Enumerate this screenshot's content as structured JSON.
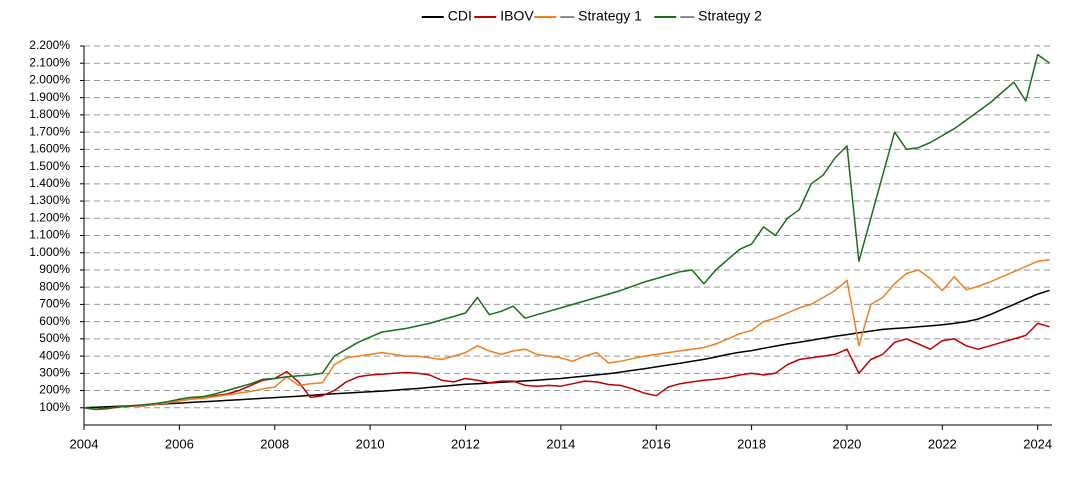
{
  "chart_data": {
    "type": "line",
    "x": [
      2004,
      2004.25,
      2004.5,
      2004.75,
      2005,
      2005.25,
      2005.5,
      2005.75,
      2006,
      2006.25,
      2006.5,
      2006.75,
      2007,
      2007.25,
      2007.5,
      2007.75,
      2008,
      2008.25,
      2008.5,
      2008.75,
      2009,
      2009.25,
      2009.5,
      2009.75,
      2010,
      2010.25,
      2010.5,
      2010.75,
      2011,
      2011.25,
      2011.5,
      2011.75,
      2012,
      2012.25,
      2012.5,
      2012.75,
      2013,
      2013.25,
      2013.5,
      2013.75,
      2014,
      2014.25,
      2014.5,
      2014.75,
      2015,
      2015.25,
      2015.5,
      2015.75,
      2016,
      2016.25,
      2016.5,
      2016.75,
      2017,
      2017.25,
      2017.5,
      2017.75,
      2018,
      2018.25,
      2018.5,
      2018.75,
      2019,
      2019.25,
      2019.5,
      2019.75,
      2020,
      2020.25,
      2020.5,
      2020.75,
      2021,
      2021.25,
      2021.5,
      2021.75,
      2022,
      2022.25,
      2022.5,
      2022.75,
      2023,
      2023.25,
      2023.5,
      2023.75,
      2024,
      2024.25
    ],
    "series": [
      {
        "name": "CDI",
        "color": "#000000",
        "values": [
          100,
          103,
          106,
          109,
          112,
          115,
          119,
          123,
          127,
          131,
          135,
          139,
          143,
          147,
          151,
          155,
          159,
          163,
          167,
          172,
          177,
          181,
          185,
          189,
          193,
          197,
          202,
          207,
          212,
          218,
          224,
          230,
          236,
          240,
          244,
          248,
          252,
          256,
          260,
          265,
          270,
          277,
          284,
          291,
          298,
          307,
          317,
          327,
          337,
          348,
          359,
          370,
          381,
          395,
          410,
          422,
          432,
          445,
          458,
          470,
          480,
          492,
          503,
          515,
          525,
          535,
          545,
          555,
          560,
          565,
          570,
          575,
          582,
          590,
          600,
          615,
          640,
          670,
          700,
          730,
          760,
          782
        ]
      },
      {
        "name": "IBOV",
        "color": "#c00000",
        "values": [
          100,
          90,
          95,
          105,
          110,
          112,
          120,
          125,
          150,
          160,
          155,
          170,
          180,
          200,
          230,
          260,
          270,
          310,
          250,
          160,
          170,
          200,
          250,
          280,
          290,
          295,
          300,
          305,
          300,
          290,
          260,
          250,
          270,
          260,
          245,
          255,
          255,
          230,
          225,
          230,
          225,
          240,
          255,
          250,
          235,
          230,
          210,
          185,
          170,
          220,
          240,
          250,
          260,
          265,
          275,
          290,
          300,
          290,
          300,
          350,
          380,
          390,
          400,
          410,
          440,
          300,
          380,
          410,
          480,
          500,
          470,
          440,
          490,
          500,
          460,
          440,
          460,
          480,
          500,
          520,
          590,
          570
        ]
      },
      {
        "name": "— Strategy 1",
        "color": "#f07f1e",
        "values": [
          100,
          92,
          98,
          105,
          112,
          115,
          120,
          128,
          140,
          150,
          155,
          165,
          175,
          185,
          195,
          210,
          220,
          280,
          230,
          240,
          245,
          350,
          390,
          400,
          410,
          420,
          410,
          400,
          400,
          390,
          380,
          400,
          420,
          460,
          430,
          410,
          430,
          440,
          410,
          400,
          390,
          370,
          400,
          420,
          360,
          370,
          385,
          400,
          410,
          420,
          430,
          440,
          450,
          470,
          500,
          530,
          550,
          600,
          620,
          650,
          680,
          700,
          740,
          780,
          840,
          460,
          700,
          740,
          820,
          880,
          900,
          850,
          780,
          860,
          785,
          805,
          830,
          860,
          890,
          920,
          950,
          960
        ]
      },
      {
        "name": "— Strategy 2",
        "color": "#1a6e1a",
        "values": [
          100,
          92,
          98,
          105,
          112,
          118,
          125,
          135,
          150,
          160,
          165,
          180,
          200,
          220,
          240,
          265,
          270,
          280,
          285,
          290,
          300,
          400,
          440,
          480,
          510,
          540,
          550,
          560,
          575,
          590,
          610,
          630,
          650,
          740,
          640,
          660,
          690,
          620,
          640,
          660,
          680,
          700,
          720,
          740,
          760,
          780,
          805,
          830,
          850,
          870,
          890,
          900,
          820,
          900,
          960,
          1020,
          1050,
          1150,
          1100,
          1200,
          1250,
          1400,
          1450,
          1550,
          1620,
          950,
          1200,
          1450,
          1700,
          1600,
          1610,
          1640,
          1680,
          1720,
          1770,
          1820,
          1870,
          1930,
          1990,
          1880,
          2150,
          2100
        ]
      }
    ],
    "xlim": [
      2004,
      2024.3
    ],
    "xticks": [
      2004,
      2006,
      2008,
      2010,
      2012,
      2014,
      2016,
      2018,
      2020,
      2022,
      2024
    ],
    "ylim": [
      0,
      2200
    ],
    "yticks": [
      {
        "value": 100,
        "label": "100%"
      },
      {
        "value": 200,
        "label": "200%"
      },
      {
        "value": 300,
        "label": "300%"
      },
      {
        "value": 400,
        "label": "400%"
      },
      {
        "value": 500,
        "label": "500%"
      },
      {
        "value": 600,
        "label": "600%"
      },
      {
        "value": 700,
        "label": "700%"
      },
      {
        "value": 800,
        "label": "800%"
      },
      {
        "value": 900,
        "label": "900%"
      },
      {
        "value": 1000,
        "label": "1.000%"
      },
      {
        "value": 1100,
        "label": "1.100%"
      },
      {
        "value": 1200,
        "label": "1.200%"
      },
      {
        "value": 1300,
        "label": "1.300%"
      },
      {
        "value": 1400,
        "label": "1.400%"
      },
      {
        "value": 1500,
        "label": "1.500%"
      },
      {
        "value": 1600,
        "label": "1.600%"
      },
      {
        "value": 1700,
        "label": "1.700%"
      },
      {
        "value": 1800,
        "label": "1.800%"
      },
      {
        "value": 1900,
        "label": "1.900%"
      },
      {
        "value": 2000,
        "label": "2.000%"
      },
      {
        "value": 2100,
        "label": "2.100%"
      },
      {
        "value": 2200,
        "label": "2.200%"
      }
    ],
    "grid": true,
    "legend": "top"
  }
}
